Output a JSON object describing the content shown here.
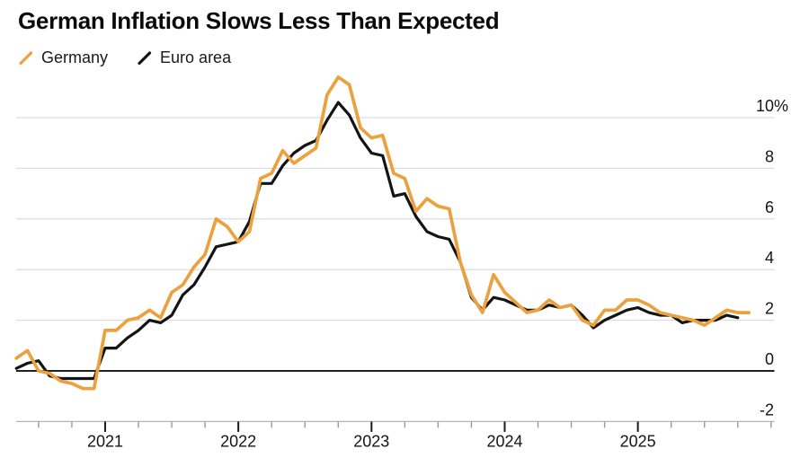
{
  "header": {
    "title": "German Inflation Slows Less Than Expected"
  },
  "legend": {
    "items": [
      {
        "label": "Germany",
        "color": "#EBA23E"
      },
      {
        "label": "Euro area",
        "color": "#141414"
      }
    ]
  },
  "chart_data": {
    "type": "line",
    "title": "German Inflation Slows Less Than Expected",
    "unit": "percent, year-over-year",
    "frequency": "monthly",
    "x_start": "2020-05",
    "ylim": [
      -2,
      12
    ],
    "grid": "horizontal",
    "legend_position": "top-left",
    "y_axis_side": "right",
    "y_ticks": [
      {
        "label": "10%",
        "v": 10
      },
      {
        "label": "8",
        "v": 8
      },
      {
        "label": "6",
        "v": 6
      },
      {
        "label": "4",
        "v": 4
      },
      {
        "label": "2",
        "v": 2
      },
      {
        "label": "0",
        "v": 0
      },
      {
        "label": "-2",
        "v": -2
      }
    ],
    "x_ticks": [
      {
        "label": "2021",
        "i": 8
      },
      {
        "label": "2022",
        "i": 20
      },
      {
        "label": "2023",
        "i": 32
      },
      {
        "label": "2024",
        "i": 44
      },
      {
        "label": "2025",
        "i": 56
      }
    ],
    "series": [
      {
        "name": "Euro area",
        "color": "#141414",
        "x_end": "2025-10",
        "values": [
          0.1,
          0.3,
          0.4,
          -0.2,
          -0.3,
          -0.3,
          -0.3,
          -0.3,
          0.9,
          0.9,
          1.3,
          1.6,
          2.0,
          1.9,
          2.2,
          3.0,
          3.4,
          4.1,
          4.9,
          5.0,
          5.1,
          5.9,
          7.4,
          7.4,
          8.1,
          8.6,
          8.9,
          9.1,
          9.9,
          10.6,
          10.1,
          9.2,
          8.6,
          8.5,
          6.9,
          7.0,
          6.1,
          5.5,
          5.3,
          5.2,
          4.3,
          2.9,
          2.4,
          2.9,
          2.8,
          2.6,
          2.4,
          2.4,
          2.6,
          2.5,
          2.6,
          2.2,
          1.7,
          2.0,
          2.2,
          2.4,
          2.5,
          2.3,
          2.2,
          2.2,
          1.9,
          2.0,
          2.0,
          2.0,
          2.2,
          2.1
        ]
      },
      {
        "name": "Germany",
        "color": "#EBA23E",
        "x_end": "2025-11",
        "values": [
          0.5,
          0.8,
          0.0,
          -0.1,
          -0.4,
          -0.5,
          -0.7,
          -0.7,
          1.6,
          1.6,
          2.0,
          2.1,
          2.4,
          2.1,
          3.1,
          3.4,
          4.1,
          4.6,
          6.0,
          5.7,
          5.1,
          5.5,
          7.6,
          7.8,
          8.7,
          8.2,
          8.5,
          8.8,
          10.9,
          11.6,
          11.3,
          9.6,
          9.2,
          9.3,
          7.8,
          7.6,
          6.3,
          6.8,
          6.5,
          6.4,
          4.3,
          3.0,
          2.3,
          3.8,
          3.1,
          2.7,
          2.3,
          2.4,
          2.8,
          2.5,
          2.6,
          2.0,
          1.8,
          2.4,
          2.4,
          2.8,
          2.8,
          2.6,
          2.3,
          2.2,
          2.1,
          2.0,
          1.8,
          2.1,
          2.4,
          2.3,
          2.3
        ]
      }
    ]
  }
}
